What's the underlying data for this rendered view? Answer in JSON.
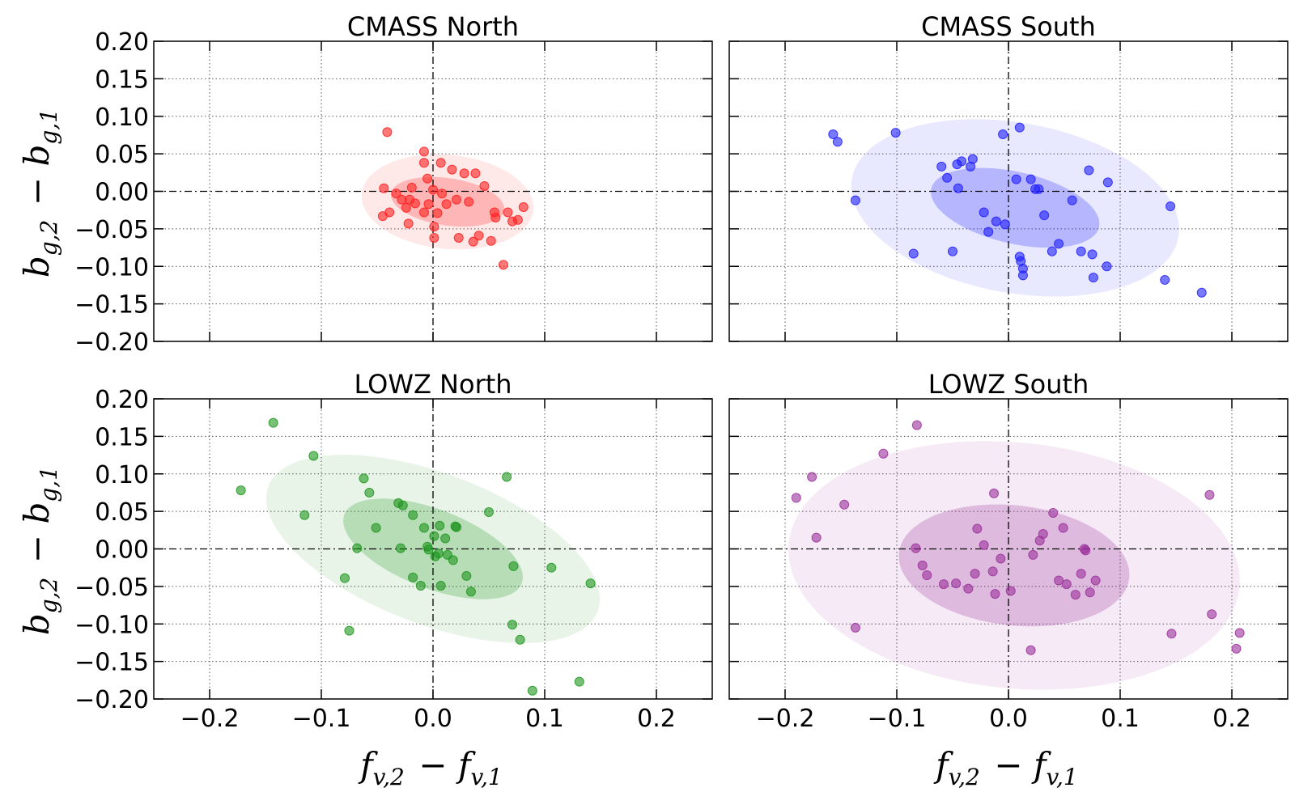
{
  "chart_data": [
    {
      "type": "scatter",
      "title": "CMASS North",
      "xlabel": "f_{v,2} − f_{v,1}",
      "ylabel": "b_{g,2} − b_{g,1}",
      "xlim": [
        -0.25,
        0.25
      ],
      "ylim": [
        -0.2,
        0.2
      ],
      "color": "#ff2020",
      "ellipse_inner": {
        "cx": 0.013,
        "cy": -0.014,
        "a": 0.052,
        "b": 0.031,
        "angle_deg": -16
      },
      "ellipse_outer": {
        "cx": 0.013,
        "cy": -0.014,
        "a": 0.078,
        "b": 0.062,
        "angle_deg": -16
      },
      "points": [
        [
          -0.041,
          0.079
        ],
        [
          -0.005,
          0.017
        ],
        [
          -0.008,
          0.038
        ],
        [
          0.007,
          0.038
        ],
        [
          0.017,
          0.029
        ],
        [
          0.028,
          0.024
        ],
        [
          0.038,
          0.024
        ],
        [
          0.046,
          0.007
        ],
        [
          -0.019,
          0.005
        ],
        [
          -0.044,
          0.004
        ],
        [
          -0.033,
          -0.003
        ],
        [
          -0.028,
          -0.011
        ],
        [
          -0.021,
          -0.011
        ],
        [
          -0.016,
          -0.016
        ],
        [
          -0.008,
          -0.028
        ],
        [
          -0.024,
          -0.022
        ],
        [
          -0.039,
          -0.028
        ],
        [
          -0.045,
          -0.033
        ],
        [
          -0.022,
          -0.043
        ],
        [
          0.004,
          -0.029
        ],
        [
          0.008,
          -0.003
        ],
        [
          0.021,
          -0.011
        ],
        [
          0.032,
          -0.014
        ],
        [
          -0.004,
          -0.017
        ],
        [
          0.001,
          -0.047
        ],
        [
          0.001,
          -0.062
        ],
        [
          0.023,
          -0.062
        ],
        [
          0.041,
          -0.059
        ],
        [
          0.052,
          -0.066
        ],
        [
          0.055,
          -0.028
        ],
        [
          0.056,
          -0.035
        ],
        [
          0.067,
          -0.028
        ],
        [
          0.071,
          -0.04
        ],
        [
          0.076,
          -0.038
        ],
        [
          0.081,
          -0.021
        ],
        [
          0.036,
          -0.067
        ],
        [
          0.063,
          -0.098
        ],
        [
          -0.008,
          0.053
        ],
        [
          0.0,
          0.002
        ],
        [
          0.012,
          -0.017
        ]
      ]
    },
    {
      "type": "scatter",
      "title": "CMASS South",
      "xlabel": "f_{v,2} − f_{v,1}",
      "ylabel": "",
      "xlim": [
        -0.25,
        0.25
      ],
      "ylim": [
        -0.2,
        0.2
      ],
      "color": "#2020ff",
      "ellipse_inner": {
        "cx": 0.006,
        "cy": -0.022,
        "a": 0.08,
        "b": 0.046,
        "angle_deg": -24
      },
      "ellipse_outer": {
        "cx": 0.006,
        "cy": -0.022,
        "a": 0.153,
        "b": 0.11,
        "angle_deg": -24
      },
      "points": [
        [
          -0.157,
          0.076
        ],
        [
          -0.153,
          0.066
        ],
        [
          -0.101,
          0.078
        ],
        [
          -0.005,
          0.076
        ],
        [
          0.01,
          0.085
        ],
        [
          -0.137,
          -0.012
        ],
        [
          -0.085,
          -0.083
        ],
        [
          -0.05,
          -0.08
        ],
        [
          -0.06,
          0.033
        ],
        [
          -0.055,
          0.018
        ],
        [
          -0.046,
          0.036
        ],
        [
          -0.042,
          0.04
        ],
        [
          -0.032,
          0.043
        ],
        [
          -0.034,
          0.033
        ],
        [
          -0.045,
          0.004
        ],
        [
          -0.022,
          -0.028
        ],
        [
          -0.018,
          -0.054
        ],
        [
          -0.011,
          -0.04
        ],
        [
          -0.003,
          -0.044
        ],
        [
          0.007,
          0.016
        ],
        [
          0.02,
          0.016
        ],
        [
          0.024,
          0.003
        ],
        [
          0.027,
          0.003
        ],
        [
          0.032,
          -0.032
        ],
        [
          0.045,
          -0.07
        ],
        [
          0.039,
          -0.08
        ],
        [
          0.057,
          -0.012
        ],
        [
          0.065,
          -0.08
        ],
        [
          0.072,
          0.028
        ],
        [
          0.075,
          -0.084
        ],
        [
          0.076,
          -0.115
        ],
        [
          0.089,
          0.012
        ],
        [
          0.088,
          -0.1
        ],
        [
          0.01,
          -0.087
        ],
        [
          0.013,
          -0.103
        ],
        [
          0.011,
          -0.093
        ],
        [
          0.013,
          -0.112
        ],
        [
          0.14,
          -0.118
        ],
        [
          0.145,
          -0.02
        ],
        [
          0.173,
          -0.135
        ]
      ]
    },
    {
      "type": "scatter",
      "title": "LOWZ North",
      "xlabel": "f_{v,2} − f_{v,1}",
      "ylabel": "b_{g,2} − b_{g,1}",
      "xlim": [
        -0.25,
        0.25
      ],
      "ylim": [
        -0.2,
        0.2
      ],
      "color": "#1e961e",
      "ellipse_inner": {
        "cx": 0.0,
        "cy": 0.0,
        "a": 0.093,
        "b": 0.048,
        "angle_deg": -36
      },
      "ellipse_outer": {
        "cx": 0.0,
        "cy": 0.0,
        "a": 0.172,
        "b": 0.092,
        "angle_deg": -36
      },
      "points": [
        [
          -0.143,
          0.168
        ],
        [
          -0.107,
          0.124
        ],
        [
          -0.172,
          0.078
        ],
        [
          -0.115,
          0.045
        ],
        [
          -0.062,
          0.094
        ],
        [
          -0.057,
          0.075
        ],
        [
          -0.031,
          0.061
        ],
        [
          -0.027,
          0.058
        ],
        [
          -0.051,
          0.028
        ],
        [
          -0.068,
          0.001
        ],
        [
          -0.079,
          -0.039
        ],
        [
          -0.075,
          -0.109
        ],
        [
          -0.029,
          0.001
        ],
        [
          -0.018,
          0.045
        ],
        [
          -0.008,
          0.028
        ],
        [
          -0.005,
          0.003
        ],
        [
          0.002,
          -0.01
        ],
        [
          0.005,
          -0.006
        ],
        [
          0.006,
          0.031
        ],
        [
          0.011,
          0.014
        ],
        [
          0.013,
          -0.008
        ],
        [
          0.018,
          -0.015
        ],
        [
          0.02,
          0.03
        ],
        [
          0.021,
          0.029
        ],
        [
          -0.018,
          -0.038
        ],
        [
          -0.011,
          -0.049
        ],
        [
          0.007,
          -0.049
        ],
        [
          0.03,
          -0.036
        ],
        [
          0.034,
          -0.057
        ],
        [
          0.05,
          0.049
        ],
        [
          0.066,
          0.096
        ],
        [
          0.072,
          -0.023
        ],
        [
          0.071,
          -0.101
        ],
        [
          0.078,
          -0.121
        ],
        [
          0.106,
          -0.025
        ],
        [
          0.089,
          -0.189
        ],
        [
          0.131,
          -0.177
        ],
        [
          0.141,
          -0.046
        ],
        [
          -0.004,
          -0.001
        ],
        [
          0.001,
          0.017
        ]
      ]
    },
    {
      "type": "scatter",
      "title": "LOWZ South",
      "xlabel": "f_{v,2} − f_{v,1}",
      "ylabel": "",
      "xlim": [
        -0.25,
        0.25
      ],
      "ylim": [
        -0.2,
        0.2
      ],
      "color": "#9b309b",
      "ellipse_inner": {
        "cx": 0.005,
        "cy": -0.022,
        "a": 0.105,
        "b": 0.079,
        "angle_deg": -16
      },
      "ellipse_outer": {
        "cx": 0.005,
        "cy": -0.022,
        "a": 0.205,
        "b": 0.162,
        "angle_deg": -16
      },
      "points": [
        [
          -0.082,
          0.165
        ],
        [
          -0.112,
          0.127
        ],
        [
          -0.176,
          0.096
        ],
        [
          -0.19,
          0.068
        ],
        [
          -0.172,
          0.015
        ],
        [
          -0.147,
          0.059
        ],
        [
          -0.137,
          -0.105
        ],
        [
          -0.083,
          0.001
        ],
        [
          -0.077,
          -0.022
        ],
        [
          -0.073,
          -0.035
        ],
        [
          -0.058,
          -0.047
        ],
        [
          -0.047,
          -0.046
        ],
        [
          -0.036,
          -0.053
        ],
        [
          -0.028,
          0.027
        ],
        [
          -0.013,
          0.074
        ],
        [
          -0.007,
          -0.013
        ],
        [
          -0.014,
          -0.03
        ],
        [
          -0.012,
          -0.06
        ],
        [
          -0.022,
          0.005
        ],
        [
          0.002,
          -0.056
        ],
        [
          0.022,
          -0.008
        ],
        [
          0.028,
          0.011
        ],
        [
          0.031,
          0.02
        ],
        [
          0.04,
          0.048
        ],
        [
          0.049,
          0.028
        ],
        [
          0.052,
          -0.047
        ],
        [
          0.06,
          -0.061
        ],
        [
          0.065,
          -0.033
        ],
        [
          0.068,
          0.0
        ],
        [
          0.073,
          -0.058
        ],
        [
          0.078,
          -0.042
        ],
        [
          0.02,
          -0.135
        ],
        [
          0.146,
          -0.113
        ],
        [
          0.18,
          0.072
        ],
        [
          0.182,
          -0.087
        ],
        [
          0.204,
          -0.133
        ],
        [
          0.207,
          -0.112
        ],
        [
          -0.03,
          -0.033
        ],
        [
          0.045,
          -0.042
        ],
        [
          0.069,
          -0.002
        ]
      ]
    }
  ]
}
